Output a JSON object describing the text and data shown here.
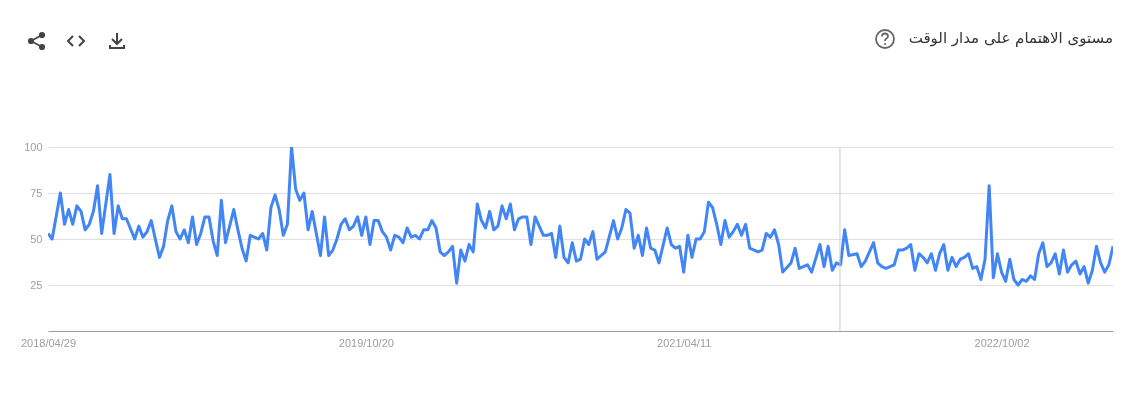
{
  "chart_data": {
    "type": "line",
    "title": "مستوى الاهتمام على مدار الوقت",
    "x": [
      "2018-04-29",
      "2018-05-06",
      "2018-05-20",
      "2018-05-27",
      "2018-06-03",
      "2018-06-10",
      "2018-06-17",
      "2018-06-24",
      "2018-07-01",
      "2018-07-08",
      "2018-07-15",
      "2018-07-22",
      "2018-07-29",
      "2018-08-12",
      "2018-08-19",
      "2018-08-26",
      "2018-09-02",
      "2018-09-09",
      "2018-09-23",
      "2018-09-30",
      "2018-10-07",
      "2018-10-14",
      "2018-10-21",
      "2018-11-04",
      "2018-11-11",
      "2018-11-18",
      "2018-11-25",
      "2018-12-02",
      "2018-12-09",
      "2018-12-16",
      "2018-12-23",
      "2018-12-30",
      "2019-01-06",
      "2019-01-13",
      "2019-01-20",
      "2019-01-27",
      "2019-02-03",
      "2019-02-10",
      "2019-02-17",
      "2019-02-24",
      "2019-03-10",
      "2019-03-17",
      "2019-03-24",
      "2019-03-31",
      "2019-04-07",
      "2019-04-21",
      "2019-04-28",
      "2019-05-05",
      "2019-05-12",
      "2019-05-19",
      "2019-05-26",
      "2019-06-02",
      "2019-06-09",
      "2019-06-16",
      "2019-06-23",
      "2019-06-30",
      "2019-07-07",
      "2019-07-14",
      "2019-07-21",
      "2019-07-28",
      "2019-08-04",
      "2019-08-11",
      "2019-08-18",
      "2019-08-25",
      "2019-09-01",
      "2019-09-08",
      "2019-09-15",
      "2019-09-22",
      "2019-09-29",
      "2019-10-06",
      "2019-10-13",
      "2019-10-20",
      "2019-10-27",
      "2019-11-03",
      "2019-11-10",
      "2019-11-17",
      "2019-11-24",
      "2019-12-01",
      "2019-12-08",
      "2019-12-15",
      "2019-12-22",
      "2019-12-29",
      "2020-01-05",
      "2020-01-12",
      "2020-01-19",
      "2020-01-26",
      "2020-02-02",
      "2020-02-09",
      "2020-02-16",
      "2020-02-23",
      "2020-03-01",
      "2020-03-08",
      "2020-03-15",
      "2020-03-22",
      "2020-03-29",
      "2020-04-05",
      "2020-04-12",
      "2020-04-19",
      "2020-04-26",
      "2020-05-03",
      "2020-05-10",
      "2020-05-17",
      "2020-05-24",
      "2020-05-31",
      "2020-06-07",
      "2020-06-14",
      "2020-06-21",
      "2020-06-28",
      "2020-07-05",
      "2020-07-12",
      "2020-07-19",
      "2020-07-26",
      "2020-08-02",
      "2020-08-09",
      "2020-08-16",
      "2020-08-23",
      "2020-08-30",
      "2020-09-06",
      "2020-09-13",
      "2020-09-20",
      "2020-09-27",
      "2020-10-04",
      "2020-10-11",
      "2020-10-18",
      "2020-10-25",
      "2020-11-01",
      "2020-11-08",
      "2020-11-15",
      "2020-11-29",
      "2020-12-13",
      "2020-12-20",
      "2020-12-27",
      "2021-01-03",
      "2021-01-10",
      "2021-01-17",
      "2021-01-24",
      "2021-01-31",
      "2021-02-07",
      "2021-02-14",
      "2021-02-21",
      "2021-02-28",
      "2021-03-14",
      "2021-03-21",
      "2021-03-28",
      "2021-04-04",
      "2021-04-11",
      "2021-04-18",
      "2021-04-25",
      "2021-05-02",
      "2021-05-09",
      "2021-05-16",
      "2021-05-23",
      "2021-05-30",
      "2021-06-06",
      "2021-06-13",
      "2021-06-20",
      "2021-06-27",
      "2021-07-04",
      "2021-07-11",
      "2021-07-18",
      "2021-07-25",
      "2021-08-01",
      "2021-08-15",
      "2021-08-22",
      "2021-08-29",
      "2021-09-05",
      "2021-09-12",
      "2021-09-19",
      "2021-09-26",
      "2021-10-10",
      "2021-10-17",
      "2021-10-24",
      "2021-11-07",
      "2021-11-14",
      "2021-11-28",
      "2021-12-05",
      "2021-12-12",
      "2021-12-19",
      "2021-12-26",
      "2022-01-02",
      "2022-01-09",
      "2022-01-16",
      "2022-01-30",
      "2022-02-06",
      "2022-02-13",
      "2022-02-27",
      "2022-03-06",
      "2022-03-13",
      "2022-03-20",
      "2022-04-03",
      "2022-04-10",
      "2022-04-17",
      "2022-04-24",
      "2022-05-01",
      "2022-05-08",
      "2022-05-15",
      "2022-05-22",
      "2022-05-29",
      "2022-06-05",
      "2022-06-12",
      "2022-06-19",
      "2022-06-26",
      "2022-07-03",
      "2022-07-10",
      "2022-07-17",
      "2022-07-24",
      "2022-07-31",
      "2022-08-07",
      "2022-08-14",
      "2022-08-21",
      "2022-08-28",
      "2022-09-04",
      "2022-09-11",
      "2022-09-18",
      "2022-09-25",
      "2022-10-02",
      "2022-10-09",
      "2022-10-16",
      "2022-10-23",
      "2022-10-30",
      "2022-11-06",
      "2022-11-13",
      "2022-11-20",
      "2022-11-27",
      "2022-12-04",
      "2022-12-11",
      "2022-12-18",
      "2022-12-25",
      "2023-01-01",
      "2023-01-08",
      "2023-01-15",
      "2023-01-22",
      "2023-01-29",
      "2023-02-05",
      "2023-02-12",
      "2023-02-19",
      "2023-02-26",
      "2023-03-05",
      "2023-03-12",
      "2023-03-19",
      "2023-03-26",
      "2023-04-02",
      "2023-04-09"
    ],
    "values": [
      53,
      50,
      75,
      58,
      66,
      58,
      68,
      65,
      55,
      58,
      65,
      79,
      53,
      85,
      53,
      68,
      61,
      61,
      50,
      57,
      51,
      54,
      60,
      40,
      46,
      60,
      68,
      54,
      50,
      55,
      48,
      62,
      47,
      53,
      62,
      62,
      49,
      41,
      71,
      48,
      66,
      55,
      45,
      38,
      52,
      50,
      53,
      44,
      67,
      74,
      66,
      52,
      58,
      100,
      77,
      71,
      75,
      55,
      65,
      53,
      41,
      62,
      41,
      44,
      50,
      58,
      61,
      55,
      57,
      62,
      52,
      62,
      47,
      60,
      60,
      54,
      51,
      44,
      52,
      51,
      48,
      56,
      51,
      52,
      50,
      55,
      55,
      60,
      56,
      43,
      41,
      43,
      46,
      26,
      44,
      38,
      47,
      43,
      69,
      60,
      56,
      65,
      55,
      57,
      68,
      61,
      69,
      55,
      61,
      62,
      62,
      47,
      62,
      57,
      52,
      52,
      53,
      40,
      57,
      40,
      37,
      48,
      38,
      39,
      50,
      47,
      54,
      39,
      43,
      60,
      50,
      56,
      66,
      64,
      45,
      52,
      41,
      56,
      45,
      44,
      37,
      56,
      47,
      45,
      46,
      32,
      52,
      40,
      50,
      50,
      54,
      70,
      67,
      58,
      47,
      60,
      51,
      54,
      58,
      52,
      58,
      45,
      43,
      44,
      53,
      51,
      55,
      47,
      32,
      37,
      45,
      34,
      36,
      32,
      47,
      35,
      46,
      33,
      37,
      36,
      55,
      41,
      42,
      35,
      38,
      48,
      37,
      35,
      34,
      36,
      44,
      44,
      45,
      47,
      33,
      42,
      40,
      37,
      42,
      33,
      42,
      47,
      33,
      40,
      35,
      39,
      40,
      42,
      34,
      35,
      28,
      39,
      79,
      29,
      42,
      32,
      27,
      39,
      28,
      25,
      28,
      27,
      30,
      28,
      42,
      48,
      35,
      37,
      42,
      31,
      44,
      32,
      36,
      38,
      31,
      35,
      26,
      33,
      46,
      37,
      32,
      36,
      46
    ],
    "color": "#4285f4",
    "xlim": [
      "2018-04-29",
      "2023-04-09"
    ],
    "xticks": [
      {
        "value": "2018-04-29",
        "label": "2018/04/29"
      },
      {
        "value": "2019-10-20",
        "label": "2019/10/20"
      },
      {
        "value": "2021-04-11",
        "label": "2021/04/11"
      },
      {
        "value": "2022-10-02",
        "label": "2022/10/02"
      }
    ],
    "ylim": [
      0,
      100
    ],
    "yticks": [
      25,
      50,
      75,
      100
    ],
    "grid": "y",
    "ref_lines": [
      {
        "axis": "x",
        "value": "2022-01-01",
        "color": "#cccccc"
      }
    ]
  }
}
